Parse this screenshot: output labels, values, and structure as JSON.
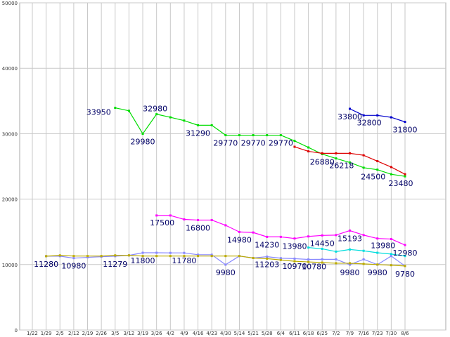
{
  "chart_data": {
    "type": "line",
    "title": "",
    "xlabel": "",
    "ylabel": "",
    "ylim": [
      0,
      50000
    ],
    "y_ticks": [
      "0",
      "10000",
      "20000",
      "30000",
      "40000",
      "50000"
    ],
    "categories": [
      "1/22",
      "1/29",
      "2/5",
      "2/12",
      "2/19",
      "2/26",
      "3/5",
      "3/12",
      "3/19",
      "3/26",
      "4/2",
      "4/9",
      "4/16",
      "4/23",
      "4/30",
      "5/14",
      "5/21",
      "5/28",
      "6/4",
      "6/11",
      "6/18",
      "6/25",
      "7/2",
      "7/9",
      "7/16",
      "7/23",
      "7/30",
      "8/6"
    ],
    "grid": true,
    "legend": "none",
    "series": [
      {
        "color": "#00dd00",
        "values": [
          null,
          null,
          null,
          null,
          null,
          null,
          33950,
          33500,
          29980,
          32980,
          32500,
          32000,
          31290,
          31290,
          29770,
          29770,
          29770,
          29770,
          29770,
          28900,
          27900,
          26880,
          26218,
          25600,
          24800,
          24500,
          23800,
          23480
        ]
      },
      {
        "color": "#0000cc",
        "values": [
          null,
          null,
          null,
          null,
          null,
          null,
          null,
          null,
          null,
          null,
          null,
          null,
          null,
          null,
          null,
          null,
          null,
          null,
          null,
          null,
          null,
          null,
          null,
          33800,
          32800,
          32800,
          32500,
          31800
        ]
      },
      {
        "color": "#dd0000",
        "values": [
          null,
          null,
          null,
          null,
          null,
          null,
          null,
          null,
          null,
          null,
          null,
          null,
          null,
          null,
          null,
          null,
          null,
          null,
          null,
          28000,
          27300,
          27000,
          27000,
          27000,
          26700,
          25800,
          24900,
          23800
        ]
      },
      {
        "color": "#ff00ff",
        "values": [
          null,
          null,
          null,
          null,
          null,
          null,
          null,
          null,
          null,
          17500,
          17500,
          16900,
          16800,
          16800,
          16000,
          14980,
          14900,
          14230,
          14230,
          13980,
          14300,
          14450,
          14500,
          15193,
          14500,
          13980,
          13900,
          12980
        ]
      },
      {
        "color": "#00dddd",
        "values": [
          null,
          null,
          null,
          null,
          null,
          null,
          null,
          null,
          null,
          null,
          null,
          null,
          null,
          null,
          null,
          null,
          null,
          null,
          null,
          null,
          12600,
          12400,
          11980,
          12300,
          12100,
          11800,
          11600,
          11300
        ]
      },
      {
        "color": "#8888ff",
        "values": [
          null,
          11280,
          11280,
          10980,
          11100,
          11200,
          11279,
          11400,
          11800,
          11800,
          11780,
          11780,
          11500,
          11500,
          9980,
          11300,
          11000,
          11203,
          10970,
          10900,
          10780,
          10800,
          10800,
          9980,
          10800,
          9980,
          11300,
          9780
        ]
      },
      {
        "color": "#bbaa00",
        "values": [
          null,
          11280,
          11400,
          11300,
          11300,
          11300,
          11400,
          11400,
          11300,
          11300,
          11300,
          11300,
          11300,
          11300,
          11300,
          11300,
          11000,
          10900,
          10700,
          10500,
          10400,
          10300,
          10200,
          10200,
          10100,
          10000,
          9900,
          9780
        ]
      }
    ],
    "data_labels": [
      {
        "cat": 6,
        "value": 33950,
        "text": "33950",
        "pos": "left-below"
      },
      {
        "cat": 8,
        "value": 29980,
        "text": "29980",
        "pos": "below"
      },
      {
        "cat": 9,
        "value": 32980,
        "text": "32980",
        "pos": "above-left"
      },
      {
        "cat": 12,
        "value": 31290,
        "text": "31290",
        "pos": "below"
      },
      {
        "cat": 14,
        "value": 29770,
        "text": "29770",
        "pos": "below"
      },
      {
        "cat": 16,
        "value": 29770,
        "text": "29770",
        "pos": "below"
      },
      {
        "cat": 18,
        "value": 29770,
        "text": "29770",
        "pos": "below"
      },
      {
        "cat": 21,
        "value": 26880,
        "text": "26880",
        "pos": "below"
      },
      {
        "cat": 22,
        "value": 26218,
        "text": "26218",
        "pos": "below-right"
      },
      {
        "cat": 23,
        "value": 33800,
        "text": "33800",
        "pos": "below"
      },
      {
        "cat": 24,
        "value": 32800,
        "text": "32800",
        "pos": "below-right"
      },
      {
        "cat": 27,
        "value": 31800,
        "text": "31800",
        "pos": "below"
      },
      {
        "cat": 25,
        "value": 24500,
        "text": "24500",
        "pos": "below-left"
      },
      {
        "cat": 27,
        "value": 23480,
        "text": "23480",
        "pos": "below-left"
      },
      {
        "cat": 9,
        "value": 17500,
        "text": "17500",
        "pos": "below-right"
      },
      {
        "cat": 12,
        "value": 16800,
        "text": "16800",
        "pos": "below"
      },
      {
        "cat": 15,
        "value": 14980,
        "text": "14980",
        "pos": "below"
      },
      {
        "cat": 17,
        "value": 14230,
        "text": "14230",
        "pos": "below"
      },
      {
        "cat": 19,
        "value": 13980,
        "text": "13980",
        "pos": "below"
      },
      {
        "cat": 21,
        "value": 14450,
        "text": "14450",
        "pos": "below"
      },
      {
        "cat": 23,
        "value": 15193,
        "text": "15193",
        "pos": "below"
      },
      {
        "cat": 25,
        "value": 13980,
        "text": "13980",
        "pos": "below-right"
      },
      {
        "cat": 27,
        "value": 12980,
        "text": "12980",
        "pos": "below"
      },
      {
        "cat": 1,
        "value": 11280,
        "text": "11280",
        "pos": "below"
      },
      {
        "cat": 3,
        "value": 10980,
        "text": "10980",
        "pos": "below"
      },
      {
        "cat": 6,
        "value": 11279,
        "text": "11279",
        "pos": "below"
      },
      {
        "cat": 8,
        "value": 11800,
        "text": "11800",
        "pos": "below"
      },
      {
        "cat": 11,
        "value": 11780,
        "text": "11780",
        "pos": "below"
      },
      {
        "cat": 14,
        "value": 9980,
        "text": "9980",
        "pos": "below"
      },
      {
        "cat": 17,
        "value": 11203,
        "text": "11203",
        "pos": "below"
      },
      {
        "cat": 19,
        "value": 10970,
        "text": "10970",
        "pos": "below"
      },
      {
        "cat": 20,
        "value": 10780,
        "text": "10780",
        "pos": "below-right"
      },
      {
        "cat": 23,
        "value": 9980,
        "text": "9980",
        "pos": "below"
      },
      {
        "cat": 25,
        "value": 9980,
        "text": "9980",
        "pos": "below"
      },
      {
        "cat": 27,
        "value": 9780,
        "text": "9780",
        "pos": "below"
      }
    ]
  }
}
